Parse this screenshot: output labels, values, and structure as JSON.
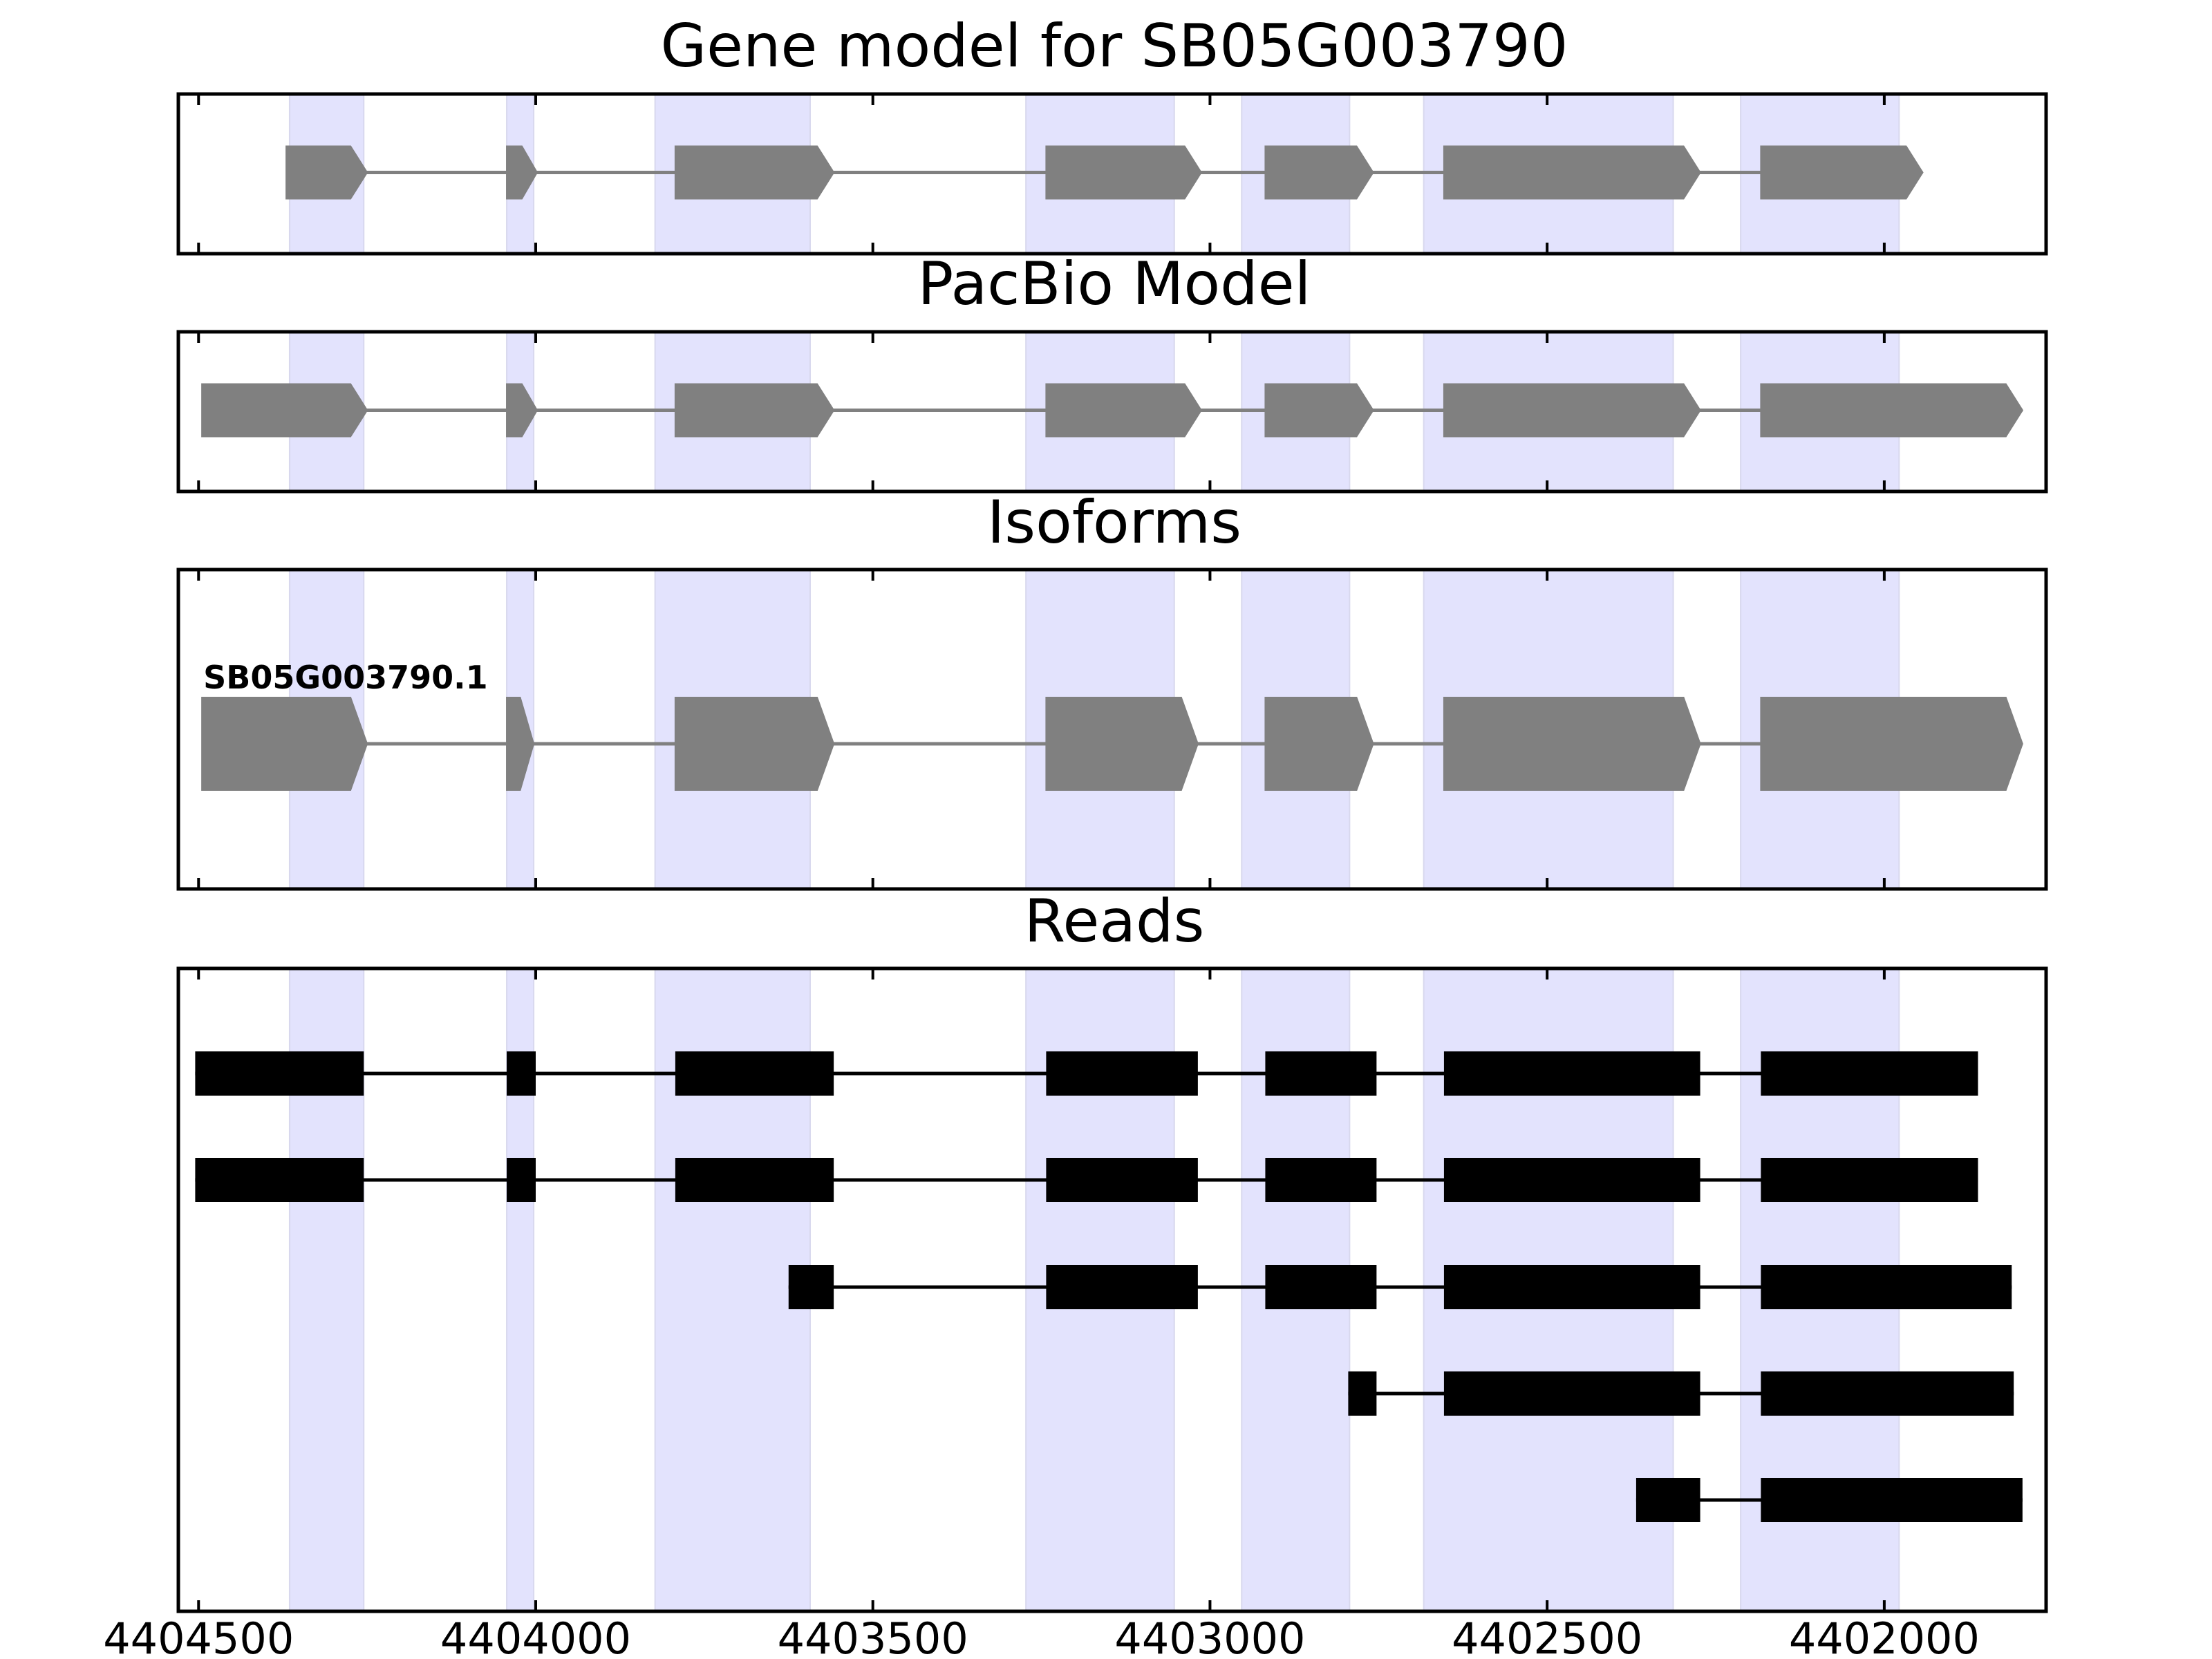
{
  "chart_data": {
    "type": "gene-structure",
    "xlim": [
      4404530,
      4401760
    ],
    "x_axis": {
      "reversed": true,
      "ticks": [
        4404500,
        4404000,
        4403500,
        4403000,
        4402500,
        4402000
      ],
      "tick_labels": [
        "4404500",
        "4404000",
        "4403500",
        "4403000",
        "4402500",
        "4402000"
      ]
    },
    "highlight_regions": [
      [
        4404365,
        4404255
      ],
      [
        4404043,
        4404003
      ],
      [
        4403823,
        4403593
      ],
      [
        4403273,
        4403053
      ],
      [
        4402953,
        4402793
      ],
      [
        4402683,
        4402313
      ],
      [
        4402213,
        4401978
      ]
    ],
    "highlight_color": "#e3e3fd",
    "panels": [
      {
        "title": "Gene model for SB05G003790",
        "kind": "model",
        "color": "#808080",
        "exons": [
          [
            4404370,
            4404250
          ],
          [
            4404043,
            4403998
          ],
          [
            4403793,
            4403558
          ],
          [
            4403243,
            4403013
          ],
          [
            4402918,
            4402758
          ],
          [
            4402653,
            4402273
          ],
          [
            4402183,
            4401943
          ]
        ]
      },
      {
        "title": "PacBio Model",
        "kind": "model",
        "color": "#808080",
        "exons": [
          [
            4404495,
            4404250
          ],
          [
            4404043,
            4403998
          ],
          [
            4403793,
            4403558
          ],
          [
            4403243,
            4403013
          ],
          [
            4402918,
            4402758
          ],
          [
            4402653,
            4402273
          ],
          [
            4402183,
            4401795
          ]
        ]
      },
      {
        "title": "Isoforms",
        "kind": "isoforms",
        "color": "#808080",
        "isoforms": [
          {
            "label": "SB05G003790.1",
            "exons": [
              [
                4404495,
                4404250
              ],
              [
                4404043,
                4404003
              ],
              [
                4403793,
                4403558
              ],
              [
                4403243,
                4403018
              ],
              [
                4402918,
                4402758
              ],
              [
                4402653,
                4402273
              ],
              [
                4402183,
                4401795
              ]
            ]
          }
        ]
      },
      {
        "title": "Reads",
        "kind": "reads",
        "color": "#000000",
        "reads": [
          {
            "exons": [
              [
                4404505,
                4404255
              ],
              [
                4404043,
                4404000
              ],
              [
                4403793,
                4403558
              ],
              [
                4403243,
                4403018
              ],
              [
                4402918,
                4402753
              ],
              [
                4402653,
                4402273
              ],
              [
                4402183,
                4401861
              ]
            ]
          },
          {
            "exons": [
              [
                4404505,
                4404255
              ],
              [
                4404043,
                4404000
              ],
              [
                4403793,
                4403558
              ],
              [
                4403243,
                4403018
              ],
              [
                4402918,
                4402753
              ],
              [
                4402653,
                4402273
              ],
              [
                4402183,
                4401861
              ]
            ]
          },
          {
            "exons": [
              [
                4403625,
                4403558
              ],
              [
                4403243,
                4403018
              ],
              [
                4402918,
                4402753
              ],
              [
                4402653,
                4402273
              ],
              [
                4402183,
                4401811
              ]
            ]
          },
          {
            "exons": [
              [
                4402795,
                4402753
              ],
              [
                4402653,
                4402273
              ],
              [
                4402183,
                4401808
              ]
            ]
          },
          {
            "exons": [
              [
                4402368,
                4402273
              ],
              [
                4402183,
                4401795
              ]
            ]
          }
        ]
      }
    ]
  }
}
